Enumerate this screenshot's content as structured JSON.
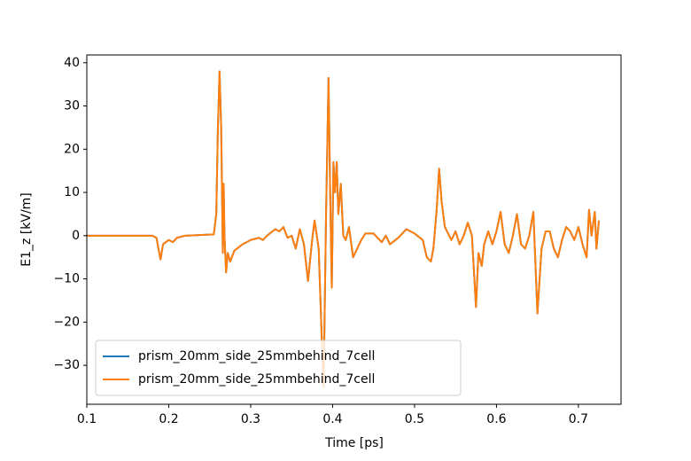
{
  "chart_data": {
    "type": "line",
    "xlabel": "Time [ps]",
    "ylabel": "E1_z [kV/m]",
    "x": [
      0.1,
      0.18,
      0.185,
      0.19,
      0.193,
      0.2,
      0.205,
      0.21,
      0.22,
      0.255,
      0.258,
      0.26,
      0.262,
      0.264,
      0.266,
      0.267,
      0.268,
      0.27,
      0.272,
      0.275,
      0.28,
      0.29,
      0.3,
      0.31,
      0.315,
      0.32,
      0.33,
      0.335,
      0.34,
      0.345,
      0.35,
      0.355,
      0.36,
      0.365,
      0.37,
      0.375,
      0.378,
      0.383,
      0.387,
      0.389,
      0.392,
      0.395,
      0.397,
      0.399,
      0.401,
      0.403,
      0.405,
      0.407,
      0.41,
      0.413,
      0.416,
      0.42,
      0.425,
      0.43,
      0.435,
      0.44,
      0.45,
      0.46,
      0.465,
      0.47,
      0.48,
      0.49,
      0.5,
      0.51,
      0.515,
      0.52,
      0.523,
      0.527,
      0.53,
      0.533,
      0.537,
      0.545,
      0.55,
      0.555,
      0.56,
      0.565,
      0.57,
      0.575,
      0.578,
      0.582,
      0.585,
      0.59,
      0.595,
      0.6,
      0.605,
      0.61,
      0.615,
      0.62,
      0.625,
      0.63,
      0.635,
      0.64,
      0.645,
      0.65,
      0.655,
      0.66,
      0.665,
      0.67,
      0.675,
      0.68,
      0.685,
      0.69,
      0.695,
      0.7,
      0.705,
      0.71,
      0.713,
      0.716,
      0.72,
      0.722,
      0.725
    ],
    "series": [
      {
        "name": "prism_20mm_side_25mmbehind_7cell",
        "color": "#1f77b4",
        "values": [
          0,
          0,
          -0.5,
          -5.5,
          -2,
          -1,
          -1.5,
          -0.5,
          0,
          0.3,
          5,
          25,
          38,
          25,
          -4,
          12,
          0,
          -8.5,
          -4,
          -6,
          -3.5,
          -2,
          -1,
          -0.5,
          -1,
          0,
          1.5,
          1,
          2,
          -0.5,
          0,
          -3,
          1.5,
          -2,
          -10.5,
          -1,
          3.5,
          -3,
          -25,
          -35,
          5,
          36.5,
          10,
          -12,
          17,
          10,
          17,
          5,
          12,
          0,
          -1,
          2,
          -5,
          -3,
          -1,
          0.5,
          0.5,
          -1.5,
          0,
          -2,
          -0.5,
          1.5,
          0.5,
          -1,
          -5,
          -6,
          -3,
          6,
          15.5,
          8,
          2,
          -1,
          1,
          -2,
          0,
          3,
          0,
          -16.5,
          -4,
          -7,
          -2,
          1,
          -2,
          1,
          5.5,
          -2,
          -4,
          0,
          5,
          -2,
          -3,
          0,
          5.5,
          -18,
          -3,
          1,
          1,
          -3,
          -5,
          -1,
          2,
          1,
          -1,
          2,
          -2,
          -5,
          6,
          0,
          5.5,
          -3,
          3.5
        ]
      },
      {
        "name": "prism_20mm_side_25mmbehind_7cell",
        "color": "#ff7f0e",
        "values": [
          0,
          0,
          -0.5,
          -5.5,
          -2,
          -1,
          -1.5,
          -0.5,
          0,
          0.3,
          5,
          25,
          38,
          25,
          -4,
          12,
          0,
          -8.5,
          -4,
          -6,
          -3.5,
          -2,
          -1,
          -0.5,
          -1,
          0,
          1.5,
          1,
          2,
          -0.5,
          0,
          -3,
          1.5,
          -2,
          -10.5,
          -1,
          3.5,
          -3,
          -25,
          -35,
          5,
          36.5,
          10,
          -12,
          17,
          10,
          17,
          5,
          12,
          0,
          -1,
          2,
          -5,
          -3,
          -1,
          0.5,
          0.5,
          -1.5,
          0,
          -2,
          -0.5,
          1.5,
          0.5,
          -1,
          -5,
          -6,
          -3,
          6,
          15.5,
          8,
          2,
          -1,
          1,
          -2,
          0,
          3,
          0,
          -16.5,
          -4,
          -7,
          -2,
          1,
          -2,
          1,
          5.5,
          -2,
          -4,
          0,
          5,
          -2,
          -3,
          0,
          5.5,
          -18,
          -3,
          1,
          1,
          -3,
          -5,
          -1,
          2,
          1,
          -1,
          2,
          -2,
          -5,
          6,
          0,
          5.5,
          -3,
          3.5
        ]
      }
    ],
    "xlim": [
      0.1,
      0.752
    ],
    "ylim": [
      -39,
      41.8
    ],
    "xticks": [
      0.1,
      0.2,
      0.3,
      0.4,
      0.5,
      0.6,
      0.7
    ],
    "yticks": [
      {
        "value": -30,
        "label": "−30"
      },
      {
        "value": -20,
        "label": "−20"
      },
      {
        "value": -10,
        "label": "−10"
      },
      0,
      10,
      20,
      30,
      40
    ],
    "legend": "lower left"
  }
}
